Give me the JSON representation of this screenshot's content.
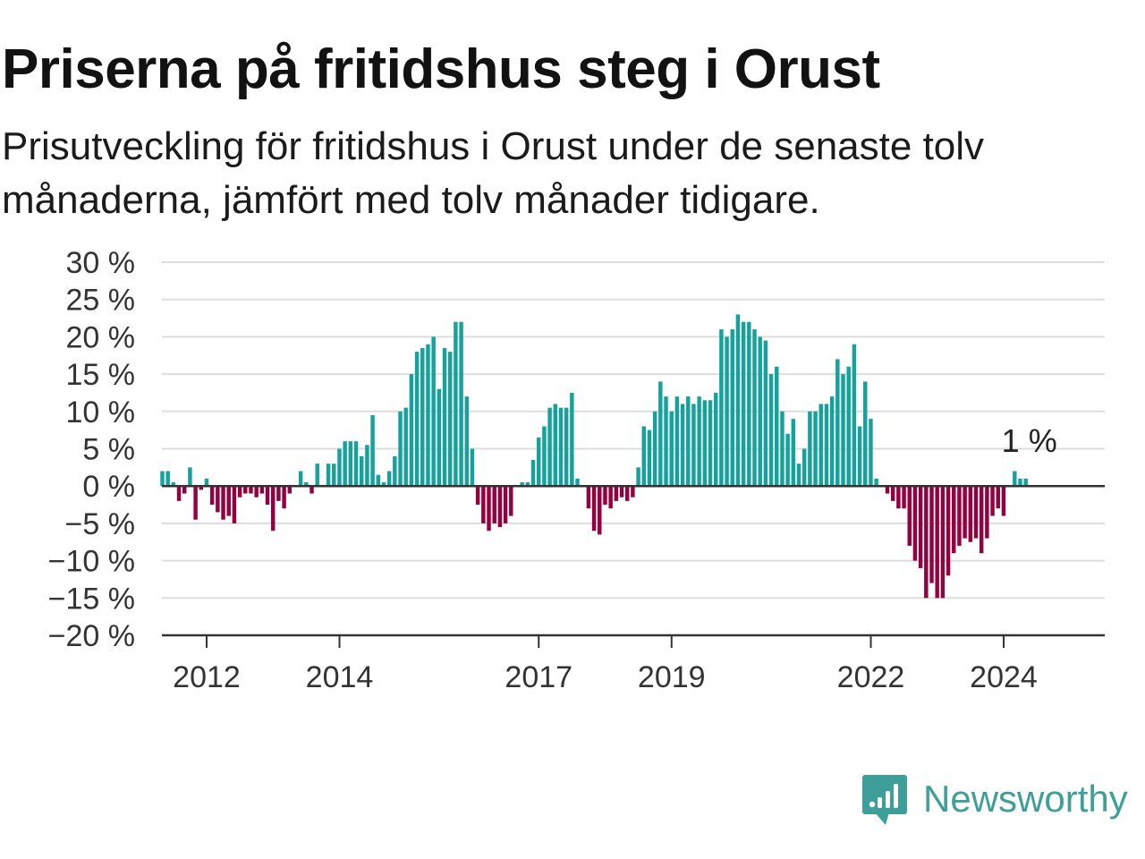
{
  "title": "Priserna på fritidshus steg i Orust",
  "subtitle": "Prisutveckling för fritidshus i Orust under de senaste tolv månaderna, jämfört med tolv månader tidigare.",
  "brand": {
    "name": "Newsworthy",
    "color": "#3e9f98"
  },
  "colors": {
    "positive": "#15a29c",
    "negative": "#95003f",
    "grid": "#dddddd",
    "zero_line": "#333333"
  },
  "chart_data": {
    "type": "bar",
    "title": "Priserna på fritidshus steg i Orust",
    "xlabel": "",
    "ylabel": "",
    "ylim": [
      -20,
      30
    ],
    "y_ticks": [
      30,
      25,
      20,
      15,
      10,
      5,
      0,
      -5,
      -10,
      -15,
      -20
    ],
    "y_tick_labels": [
      "30 %",
      "25 %",
      "20 %",
      "15 %",
      "10 %",
      "5 %",
      "0 %",
      "−5 %",
      "−10 %",
      "−15 %",
      "−20 %"
    ],
    "x_ticks": [
      "2012",
      "2014",
      "2017",
      "2019",
      "2022",
      "2024"
    ],
    "x_tick_years": [
      2012,
      2014,
      2017,
      2019,
      2022,
      2024
    ],
    "x_start": 2011.333,
    "x_step": 0.08333,
    "grid": true,
    "annotation": {
      "text": "1 %",
      "value": 1
    },
    "values": [
      2,
      2,
      0.5,
      -2,
      -1,
      2.5,
      -4.5,
      -0.5,
      1,
      -2.5,
      -3.5,
      -4.5,
      -4,
      -5,
      -1.5,
      -1,
      -1,
      -1.5,
      -1,
      -2.5,
      -6,
      -2,
      -3,
      -1,
      0,
      2,
      0.5,
      -1,
      3,
      0,
      3,
      3,
      5,
      6,
      6,
      6,
      4,
      5.5,
      9.5,
      1.5,
      0.5,
      2,
      4,
      10,
      10.5,
      15,
      18,
      18.5,
      19,
      20,
      13,
      18.5,
      18,
      22,
      22,
      12,
      5,
      -2.5,
      -5,
      -6,
      -5,
      -5.5,
      -5,
      -4,
      0,
      0.5,
      0.5,
      3.5,
      6.5,
      8,
      10.5,
      11,
      10.5,
      10.5,
      12.5,
      1,
      0,
      -3,
      -6,
      -6.5,
      -2.5,
      -3,
      -2,
      -1.5,
      -2,
      -1.5,
      2.5,
      8,
      7.5,
      10,
      14,
      12,
      10,
      12,
      11,
      12,
      11,
      12,
      11.5,
      11.5,
      12.5,
      21,
      20,
      21,
      23,
      22,
      22,
      21,
      20,
      19.5,
      15,
      16,
      10,
      7,
      9,
      3,
      5,
      10,
      10,
      11,
      11,
      12,
      17,
      15,
      16,
      19,
      8,
      14,
      9,
      1,
      0,
      -1,
      -2,
      -3,
      -3,
      -8,
      -10,
      -11,
      -15,
      -13,
      -15,
      -15,
      -12,
      -9,
      -8,
      -7,
      -7.5,
      -7,
      -9,
      -7,
      -4,
      -3,
      -4,
      0,
      2,
      1,
      1
    ]
  }
}
